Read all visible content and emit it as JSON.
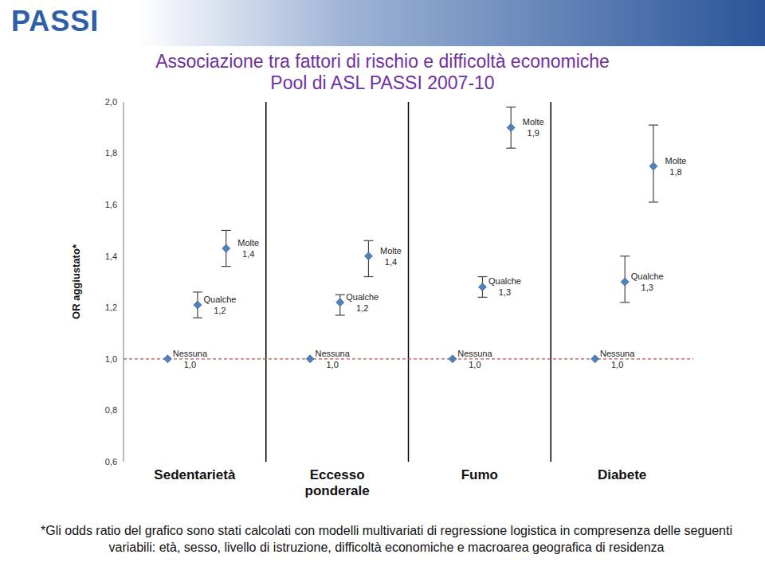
{
  "chart_data": {
    "type": "scatter",
    "logo": "PASSI",
    "title": "Associazione tra fattori di rischio e difficoltà economiche",
    "subtitle": "Pool di ASL PASSI 2007-10",
    "y_label": "OR aggiustato*",
    "categories": [
      "Sedentarietà",
      "Eccesso ponderale",
      "Fumo",
      "Diabete"
    ],
    "series": [
      {
        "name": "Nessuna",
        "color": "#4f81bd",
        "marker": "diamond",
        "values": [
          1.0,
          1.0,
          1.0,
          1.0
        ],
        "value_labels": [
          "1,0",
          "1,0",
          "1,0",
          "1,0"
        ]
      },
      {
        "name": "Qualche",
        "color": "#4f81bd",
        "marker": "diamond",
        "values": [
          1.21,
          1.22,
          1.28,
          1.3
        ],
        "value_labels": [
          "1,2",
          "1,2",
          "1,3",
          "1,3"
        ],
        "error": [
          [
            1.16,
            1.26
          ],
          [
            1.17,
            1.25
          ],
          [
            1.24,
            1.32
          ],
          [
            1.22,
            1.4
          ]
        ]
      },
      {
        "name": "Molte",
        "color": "#4f81bd",
        "marker": "diamond",
        "values": [
          1.43,
          1.4,
          1.9,
          1.75
        ],
        "value_labels": [
          "1,4",
          "1,4",
          "1,9",
          "1,8"
        ],
        "error": [
          [
            1.36,
            1.5
          ],
          [
            1.32,
            1.46
          ],
          [
            1.82,
            1.98
          ],
          [
            1.61,
            1.91
          ]
        ]
      }
    ],
    "ylim": [
      0.6,
      2.0
    ],
    "yticks": [
      {
        "value": 0.6,
        "label": "0,6"
      },
      {
        "value": 0.8,
        "label": "0,8"
      },
      {
        "value": 1.0,
        "label": "1,0"
      },
      {
        "value": 1.2,
        "label": "1,2"
      },
      {
        "value": 1.4,
        "label": "1,4"
      },
      {
        "value": 1.6,
        "label": "1,6"
      },
      {
        "value": 1.8,
        "label": "1,8"
      },
      {
        "value": 2.0,
        "label": "2,0"
      }
    ],
    "reference_line": 1.0,
    "grid": false,
    "data_labels": true,
    "footnote": "*Gli odds ratio del grafico sono stati calcolati con modelli multivariati di regressione logistica in compresenza delle seguenti variabili: età, sesso, livello di istruzione, difficoltà economiche e macroarea geografica di residenza"
  }
}
